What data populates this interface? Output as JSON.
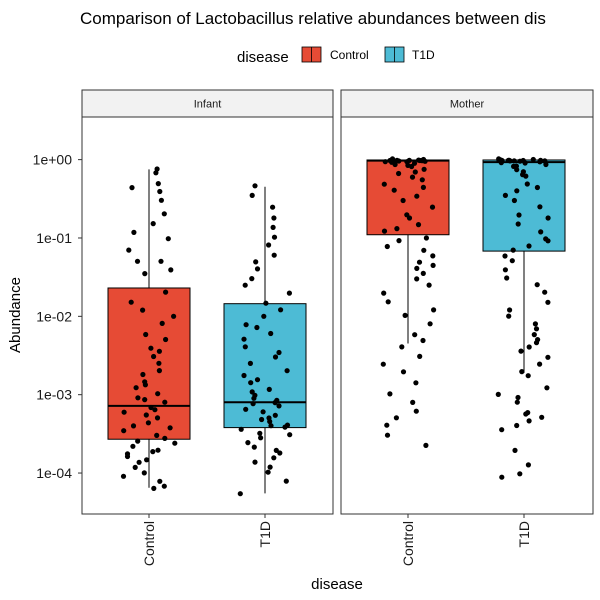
{
  "chart_data": {
    "type": "boxplot",
    "title": "Comparison of Lactobacillus relative abundances between dis",
    "xlabel": "disease",
    "ylabel": "Abundance",
    "y_scale": "log10",
    "ylim": [
      3e-05,
      3.5
    ],
    "y_ticks": [
      0.0001,
      0.001,
      0.01,
      0.1,
      1
    ],
    "y_tick_labels": [
      "1e-04",
      "1e-03",
      "1e-02",
      "1e-01",
      "1e+00"
    ],
    "legend": {
      "title": "disease",
      "position": "top",
      "entries": [
        {
          "label": "Control",
          "color": "#E64B35"
        },
        {
          "label": "T1D",
          "color": "#4DBBD5"
        }
      ]
    },
    "facets": [
      {
        "label": "Infant",
        "categories": [
          "Control",
          "T1D"
        ],
        "boxes": [
          {
            "category": "Control",
            "color": "#E64B35",
            "min": 6.5e-05,
            "q1": 0.00027,
            "median": 0.00072,
            "q3": 0.023,
            "max": 0.75
          },
          {
            "category": "T1D",
            "color": "#4DBBD5",
            "min": 5.5e-05,
            "q1": 0.00038,
            "median": 0.0008,
            "q3": 0.0145,
            "max": 0.45
          }
        ],
        "points": [
          {
            "category": "Control",
            "values": [
              0.75,
              0.7,
              0.5,
              0.45,
              0.4,
              0.3,
              0.2,
              0.15,
              0.12,
              0.1,
              0.07,
              0.05,
              0.05,
              0.04,
              0.035,
              0.02,
              0.015,
              0.012,
              0.01,
              0.008,
              0.006,
              0.005,
              0.004,
              0.0035,
              0.003,
              0.0025,
              0.002,
              0.0018,
              0.0015,
              0.0013,
              0.0012,
              0.001,
              0.0009,
              0.00085,
              0.0008,
              0.0007,
              0.00065,
              0.0006,
              0.00055,
              0.0005,
              0.00045,
              0.0004,
              0.00038,
              0.00035,
              0.0003,
              0.00028,
              0.00026,
              0.00024,
              0.00022,
              0.0002,
              0.00019,
              0.00018,
              0.00016,
              0.00015,
              0.00014,
              0.00012,
              0.0001,
              9e-05,
              8e-05,
              7e-05,
              6.5e-05
            ]
          },
          {
            "category": "T1D",
            "values": [
              0.45,
              0.35,
              0.25,
              0.18,
              0.14,
              0.1,
              0.08,
              0.06,
              0.05,
              0.04,
              0.03,
              0.025,
              0.02,
              0.015,
              0.012,
              0.01,
              0.008,
              0.007,
              0.006,
              0.005,
              0.004,
              0.0035,
              0.003,
              0.0025,
              0.002,
              0.0018,
              0.0016,
              0.0014,
              0.0012,
              0.0011,
              0.001,
              0.0009,
              0.00085,
              0.0008,
              0.00075,
              0.0007,
              0.00065,
              0.0006,
              0.00055,
              0.0005,
              0.00048,
              0.00045,
              0.00042,
              0.0004,
              0.00038,
              0.00036,
              0.00033,
              0.0003,
              0.00028,
              0.00025,
              0.00022,
              0.0002,
              0.00018,
              0.00016,
              0.00014,
              0.00012,
              0.0001,
              8e-05,
              5.5e-05
            ]
          }
        ]
      },
      {
        "label": "Mother",
        "categories": [
          "Control",
          "T1D"
        ],
        "boxes": [
          {
            "category": "Control",
            "color": "#E64B35",
            "min": 0.0045,
            "q1": 0.11,
            "median": 0.97,
            "q3": 0.99,
            "max": 1.0
          },
          {
            "category": "T1D",
            "color": "#4DBBD5",
            "min": 0.0019,
            "q1": 0.068,
            "median": 0.93,
            "q3": 0.99,
            "max": 1.0
          }
        ],
        "points": [
          {
            "category": "Control",
            "values": [
              1.0,
              1.0,
              1.0,
              1.0,
              0.99,
              0.99,
              0.98,
              0.98,
              0.97,
              0.97,
              0.96,
              0.95,
              0.95,
              0.94,
              0.93,
              0.92,
              0.9,
              0.88,
              0.85,
              0.8,
              0.75,
              0.7,
              0.65,
              0.6,
              0.55,
              0.5,
              0.45,
              0.4,
              0.35,
              0.3,
              0.25,
              0.2,
              0.18,
              0.15,
              0.13,
              0.12,
              0.1,
              0.09,
              0.08,
              0.07,
              0.06,
              0.05,
              0.045,
              0.04,
              0.035,
              0.03,
              0.025,
              0.02,
              0.015,
              0.012,
              0.01,
              0.008,
              0.006,
              0.005,
              0.004,
              0.003,
              0.0025,
              0.002,
              0.0014,
              0.001,
              0.0008,
              0.0006,
              0.0005,
              0.0004,
              0.0003,
              0.00022
            ]
          },
          {
            "category": "T1D",
            "values": [
              1.0,
              1.0,
              1.0,
              1.0,
              0.99,
              0.99,
              0.98,
              0.98,
              0.97,
              0.96,
              0.95,
              0.95,
              0.94,
              0.93,
              0.92,
              0.9,
              0.88,
              0.85,
              0.8,
              0.75,
              0.7,
              0.65,
              0.6,
              0.5,
              0.45,
              0.4,
              0.35,
              0.3,
              0.25,
              0.2,
              0.18,
              0.15,
              0.12,
              0.1,
              0.09,
              0.08,
              0.07,
              0.06,
              0.05,
              0.04,
              0.03,
              0.025,
              0.02,
              0.015,
              0.012,
              0.01,
              0.008,
              0.007,
              0.006,
              0.005,
              0.0045,
              0.004,
              0.0035,
              0.003,
              0.0025,
              0.002,
              0.0017,
              0.0012,
              0.001,
              0.0009,
              0.0008,
              0.0006,
              0.00055,
              0.0005,
              0.00045,
              0.0004,
              0.00035,
              0.0002,
              0.00013,
              0.0001,
              9e-05
            ]
          }
        ]
      }
    ]
  }
}
